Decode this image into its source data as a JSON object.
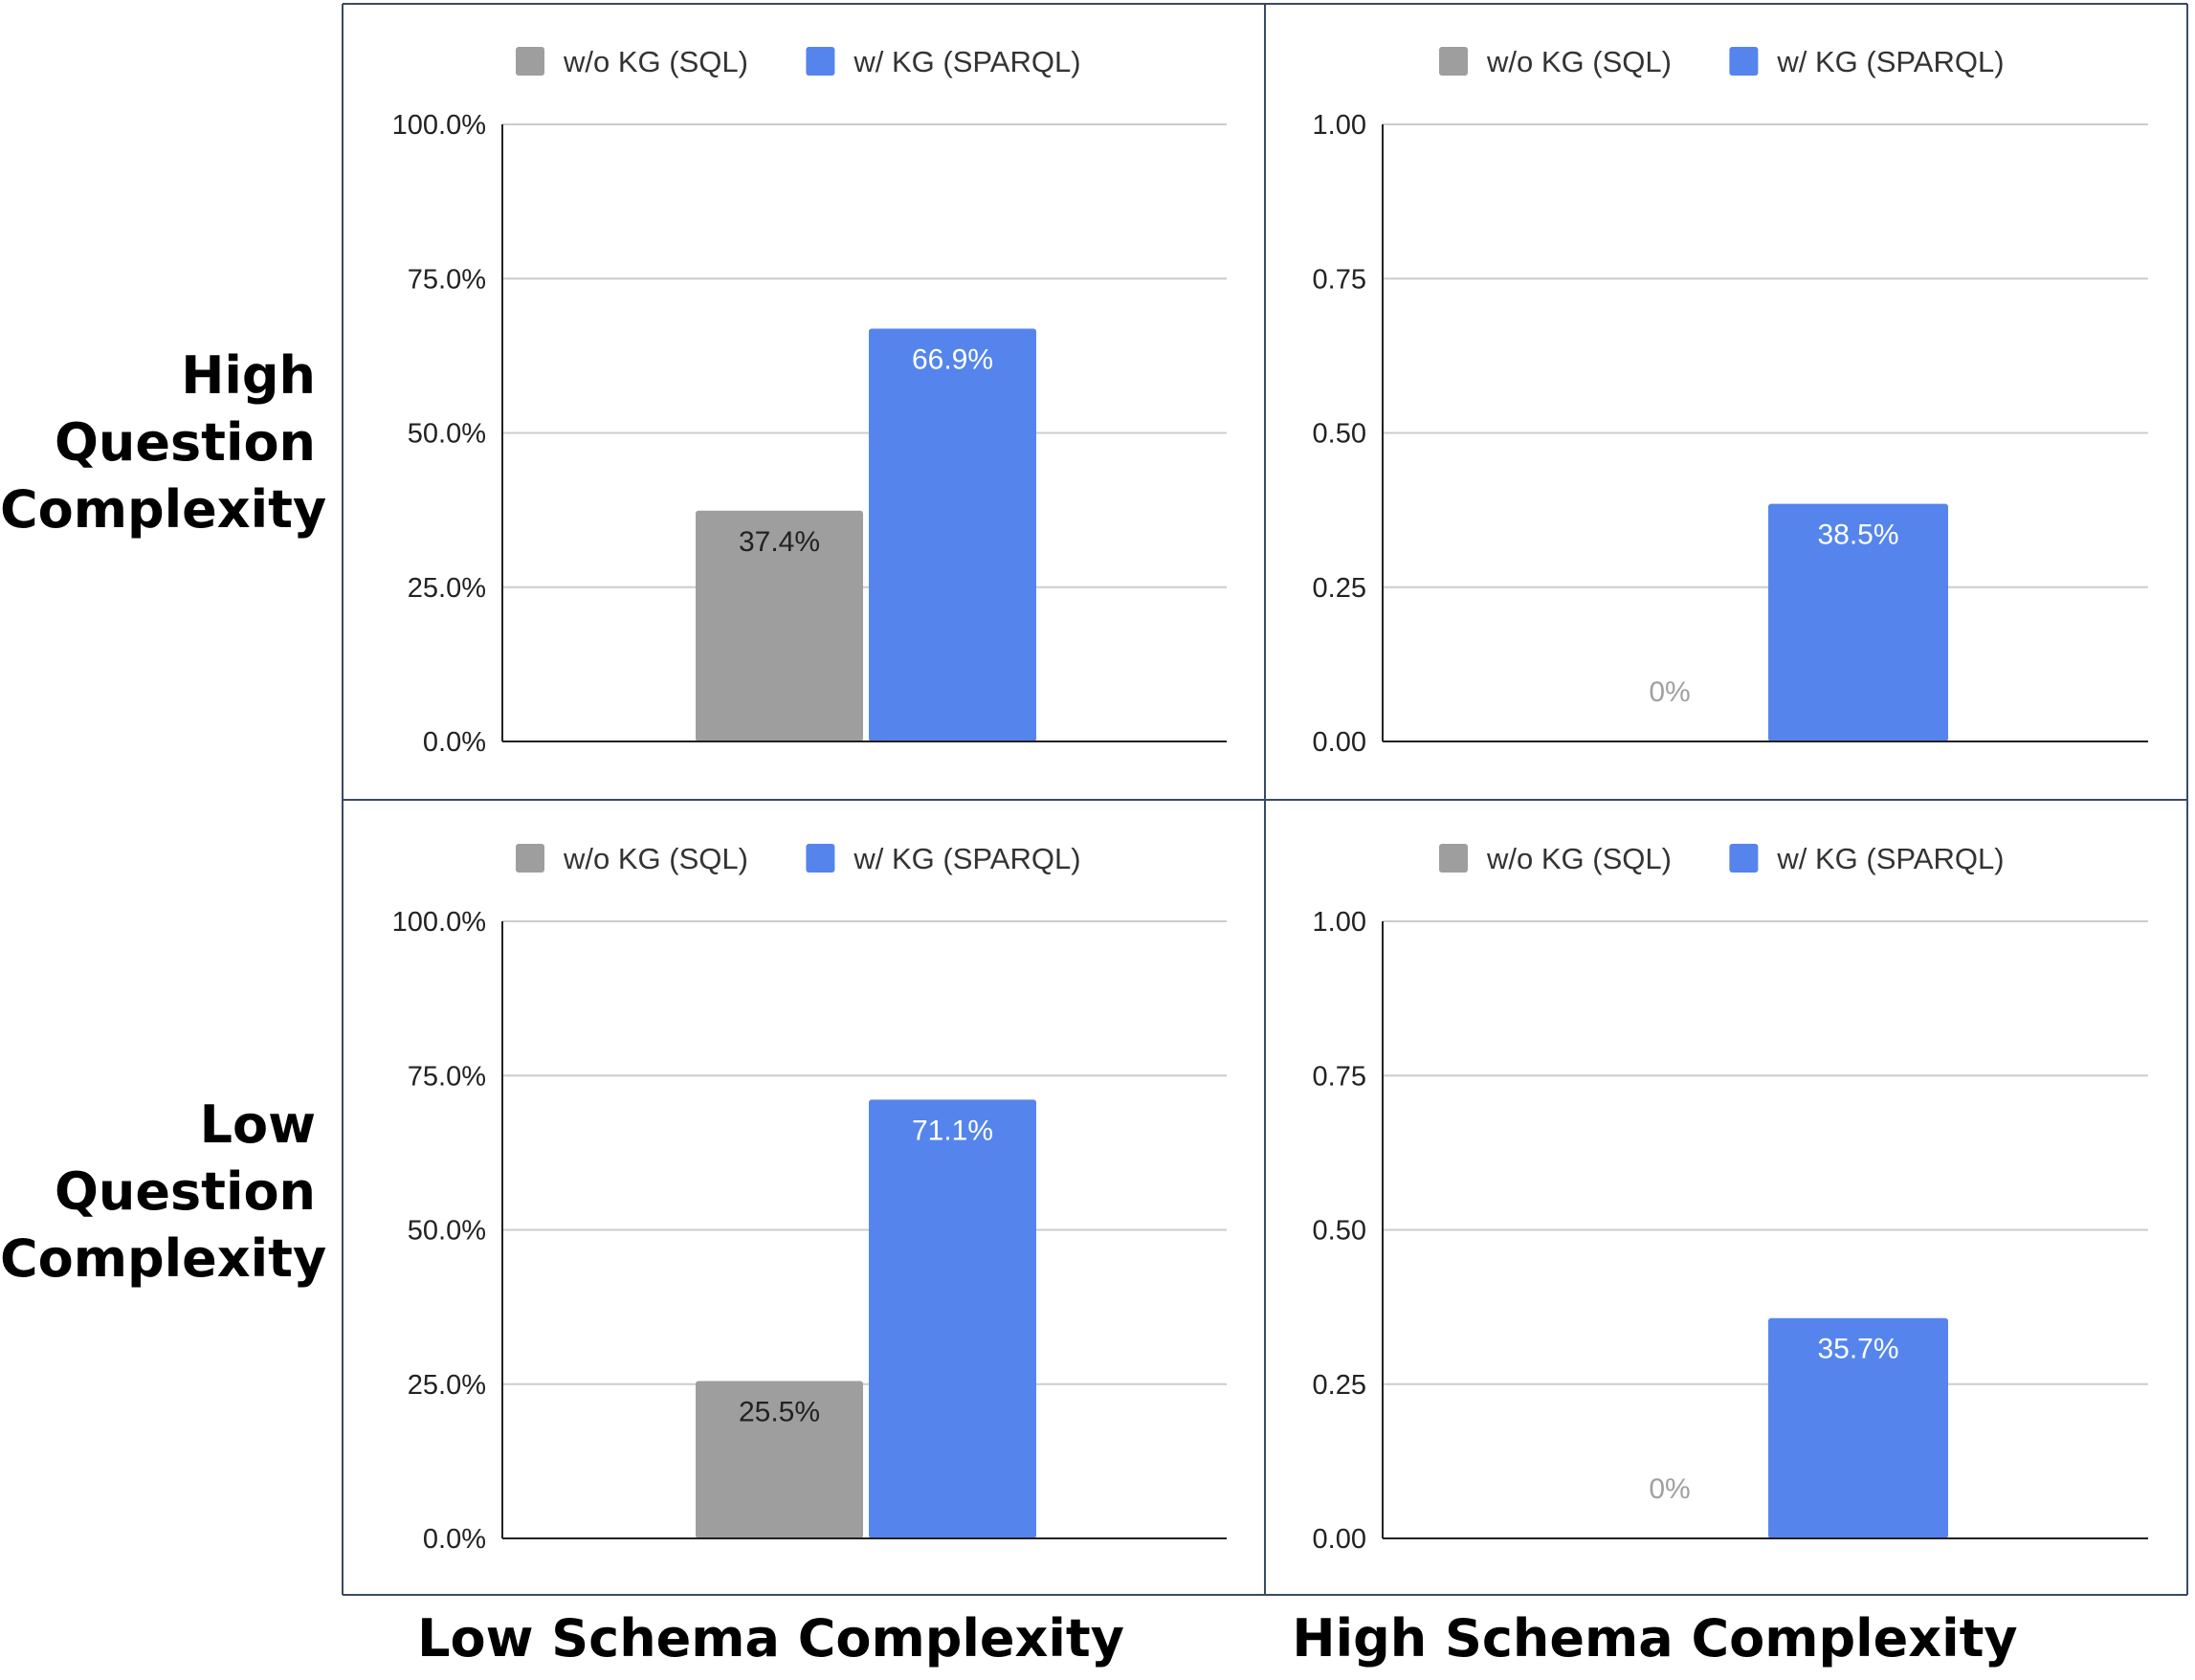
{
  "figure": {
    "row_labels": [
      [
        "High",
        "Question",
        "Complexity"
      ],
      [
        "Low",
        "Question",
        "Complexity"
      ]
    ],
    "col_labels": [
      "Low Schema Complexity",
      "High Schema Complexity"
    ]
  },
  "colors": {
    "series_sql": "#9e9e9e",
    "series_sparql": "#5585ec",
    "grid": "#cccccc",
    "axis": "#222222",
    "tick_text": "#222222",
    "label_on_gray": "#222222",
    "label_on_blue": "#ffffff",
    "label_zero": "#a0a0a0",
    "panel_border": "#3a4a63"
  },
  "chart_data": [
    {
      "type": "bar",
      "row": "High Question Complexity",
      "col": "Low Schema Complexity",
      "legend": [
        "w/o KG (SQL)",
        "w/ KG (SPARQL)"
      ],
      "series": [
        {
          "name": "w/o KG (SQL)",
          "values": [
            0.374
          ],
          "labels": [
            "37.4%"
          ]
        },
        {
          "name": "w/ KG (SPARQL)",
          "values": [
            0.669
          ],
          "labels": [
            "66.9%"
          ]
        }
      ],
      "ylim": [
        0,
        1
      ],
      "yticks": [
        0,
        0.25,
        0.5,
        0.75,
        1
      ],
      "ytick_labels": [
        "0.0%",
        "25.0%",
        "50.0%",
        "75.0%",
        "100.0%"
      ],
      "legend_position": "top-center",
      "grid": true
    },
    {
      "type": "bar",
      "row": "High Question Complexity",
      "col": "High Schema Complexity",
      "legend": [
        "w/o KG (SQL)",
        "w/ KG (SPARQL)"
      ],
      "series": [
        {
          "name": "w/o KG (SQL)",
          "values": [
            0
          ],
          "labels": [
            "0%"
          ]
        },
        {
          "name": "w/ KG (SPARQL)",
          "values": [
            0.385
          ],
          "labels": [
            "38.5%"
          ]
        }
      ],
      "ylim": [
        0,
        1
      ],
      "yticks": [
        0,
        0.25,
        0.5,
        0.75,
        1
      ],
      "ytick_labels": [
        "0.00",
        "0.25",
        "0.50",
        "0.75",
        "1.00"
      ],
      "legend_position": "top-center",
      "grid": true
    },
    {
      "type": "bar",
      "row": "Low Question Complexity",
      "col": "Low Schema Complexity",
      "legend": [
        "w/o KG (SQL)",
        "w/ KG (SPARQL)"
      ],
      "series": [
        {
          "name": "w/o KG (SQL)",
          "values": [
            0.255
          ],
          "labels": [
            "25.5%"
          ]
        },
        {
          "name": "w/ KG (SPARQL)",
          "values": [
            0.711
          ],
          "labels": [
            "71.1%"
          ]
        }
      ],
      "ylim": [
        0,
        1
      ],
      "yticks": [
        0,
        0.25,
        0.5,
        0.75,
        1
      ],
      "ytick_labels": [
        "0.0%",
        "25.0%",
        "50.0%",
        "75.0%",
        "100.0%"
      ],
      "legend_position": "top-center",
      "grid": true
    },
    {
      "type": "bar",
      "row": "Low Question Complexity",
      "col": "High Schema Complexity",
      "legend": [
        "w/o KG (SQL)",
        "w/ KG (SPARQL)"
      ],
      "series": [
        {
          "name": "w/o KG (SQL)",
          "values": [
            0
          ],
          "labels": [
            "0%"
          ]
        },
        {
          "name": "w/ KG (SPARQL)",
          "values": [
            0.357
          ],
          "labels": [
            "35.7%"
          ]
        }
      ],
      "ylim": [
        0,
        1
      ],
      "yticks": [
        0,
        0.25,
        0.5,
        0.75,
        1
      ],
      "ytick_labels": [
        "0.00",
        "0.25",
        "0.50",
        "0.75",
        "1.00"
      ],
      "legend_position": "top-center",
      "grid": true
    }
  ]
}
